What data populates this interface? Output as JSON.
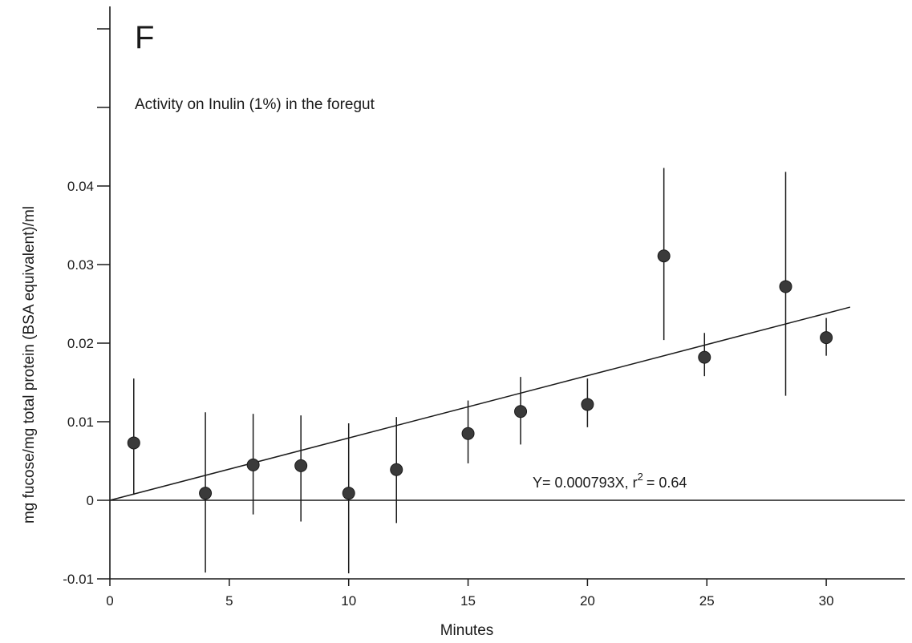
{
  "panel_label": "F",
  "chart_data": {
    "type": "scatter",
    "title": "Activity on Inulin (1%) in the foregut",
    "xlabel": "Minutes",
    "ylabel": "mg fucose/mg total protein (BSA equivalent)/ml",
    "xlim": [
      0,
      33.5
    ],
    "ylim": [
      -0.01,
      0.062
    ],
    "x_ticks": [
      0,
      5,
      10,
      15,
      20,
      25,
      30
    ],
    "y_ticks": [
      -0.01,
      0,
      0.01,
      0.02,
      0.03,
      0.04
    ],
    "x_tick_labels": [
      "0",
      "5",
      "10",
      "15",
      "20",
      "25",
      "30"
    ],
    "y_tick_labels": [
      "-0.01",
      "0",
      "0.01",
      "0.02",
      "0.03",
      "0.04"
    ],
    "y_extra_unlabeled_ticks": [
      0.05,
      0.06
    ],
    "grid": false,
    "points": [
      {
        "x": 1,
        "y": 0.0073,
        "err_low": 0.0007,
        "err_high": 0.0155
      },
      {
        "x": 4,
        "y": 0.0009,
        "err_low": -0.0092,
        "err_high": 0.0112
      },
      {
        "x": 6,
        "y": 0.0045,
        "err_low": -0.0018,
        "err_high": 0.011
      },
      {
        "x": 8,
        "y": 0.0044,
        "err_low": -0.0027,
        "err_high": 0.0108
      },
      {
        "x": 10,
        "y": 0.0009,
        "err_low": -0.0093,
        "err_high": 0.0098
      },
      {
        "x": 12,
        "y": 0.0039,
        "err_low": -0.0029,
        "err_high": 0.0106
      },
      {
        "x": 15,
        "y": 0.0085,
        "err_low": 0.0047,
        "err_high": 0.0127
      },
      {
        "x": 17.2,
        "y": 0.0113,
        "err_low": 0.0071,
        "err_high": 0.0157
      },
      {
        "x": 20,
        "y": 0.0122,
        "err_low": 0.0093,
        "err_high": 0.0155
      },
      {
        "x": 23.2,
        "y": 0.0311,
        "err_low": 0.0204,
        "err_high": 0.0423
      },
      {
        "x": 24.9,
        "y": 0.0182,
        "err_low": 0.0158,
        "err_high": 0.0213
      },
      {
        "x": 28.3,
        "y": 0.0272,
        "err_low": 0.0133,
        "err_high": 0.0418
      },
      {
        "x": 30,
        "y": 0.0207,
        "err_low": 0.0184,
        "err_high": 0.0232
      }
    ],
    "fit": {
      "slope": 0.000793,
      "intercept": 0,
      "x_range": [
        0,
        31
      ],
      "label_prefix": "Y= 0.000793X, r",
      "label_exponent": "2",
      "label_suffix": "= 0.64"
    },
    "baseline_y": 0
  },
  "colors": {
    "ink": "#1a1a1a",
    "marker": "#3a3a3a",
    "background": "#ffffff"
  }
}
